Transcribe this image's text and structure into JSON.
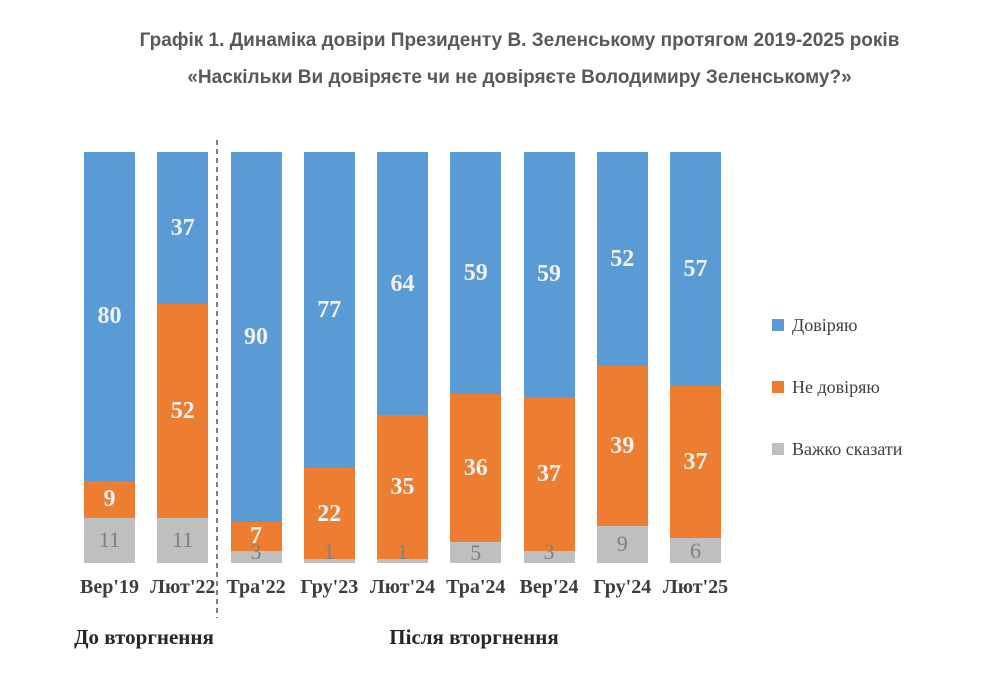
{
  "title": {
    "line1": "Графік 1. Динаміка довіри Президенту В. Зеленському протягом 2019-2025 років",
    "line2": "«Наскільки Ви довіряєте чи не довіряєте Володимиру Зеленському?»"
  },
  "chart_data": {
    "type": "bar",
    "stacked": true,
    "grid": false,
    "ylim": [
      0,
      100
    ],
    "legend_position": "right",
    "categories": [
      "Вер'19",
      "Лют'22",
      "Тра'22",
      "Гру'23",
      "Лют'24",
      "Тра'24",
      "Вер'24",
      "Гру'24",
      "Лют'25"
    ],
    "series": [
      {
        "name": "Довіряю",
        "color": "#5B9BD5",
        "label_color": "#F2F2F2",
        "values": [
          80,
          37,
          90,
          77,
          64,
          59,
          59,
          52,
          57
        ]
      },
      {
        "name": "Не довіряю",
        "color": "#ED7D31",
        "label_color": "#F2F2F2",
        "values": [
          9,
          52,
          7,
          22,
          35,
          36,
          37,
          39,
          37
        ]
      },
      {
        "name": "Важко сказати",
        "color": "#BFBFBF",
        "label_color": "#7F7F7F",
        "values": [
          11,
          11,
          3,
          1,
          1,
          5,
          3,
          9,
          6
        ]
      }
    ],
    "groups": [
      {
        "label": "До вторгнення",
        "category_span": [
          0,
          1
        ]
      },
      {
        "label": "Після вторгнення",
        "category_span": [
          2,
          8
        ]
      }
    ],
    "separator": {
      "after_category_index": 1,
      "style": "dashed",
      "color": "#7F7F7F"
    }
  }
}
